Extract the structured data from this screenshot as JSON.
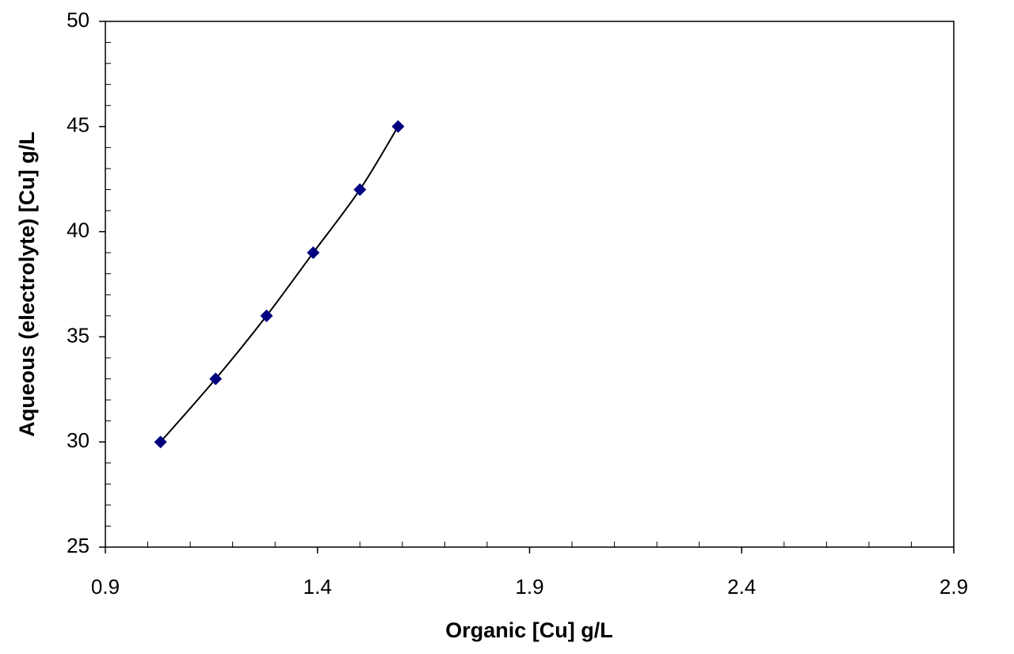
{
  "chart_data": {
    "type": "scatter",
    "x_label": "Organic [Cu] g/L",
    "y_label": "Aqueous (electrolyte) [Cu] g/L",
    "series": [
      {
        "color": "#000080",
        "line_color": "#000000",
        "x": [
          1.03,
          1.16,
          1.28,
          1.39,
          1.5,
          1.59
        ],
        "values": [
          30,
          33,
          36,
          39,
          42,
          45
        ]
      }
    ],
    "xlim": [
      0.9,
      2.9
    ],
    "xticks": [
      0.9,
      1.4,
      1.9,
      2.4,
      2.9
    ],
    "ylim": [
      25,
      50
    ],
    "yticks": [
      25,
      30,
      35,
      40,
      45,
      50
    ],
    "grid": false
  }
}
